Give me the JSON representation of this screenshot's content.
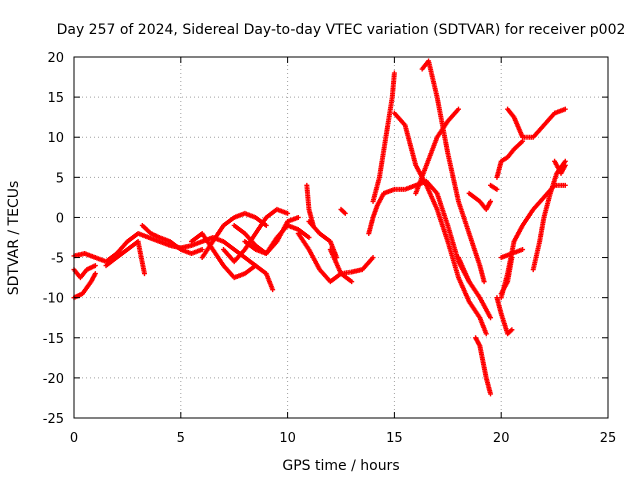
{
  "chart_data": {
    "type": "scatter",
    "title": "Day 257 of 2024, Sidereal Day-to-day VTEC variation (SDTVAR) for receiver p002",
    "xlabel": "GPS time / hours",
    "ylabel": "SDTVAR / TECUs",
    "xlim": [
      0,
      25
    ],
    "ylim": [
      -25,
      20
    ],
    "x_ticks": [
      "0",
      "5",
      "10",
      "15",
      "20",
      "25"
    ],
    "y_ticks": [
      "-25",
      "-20",
      "-15",
      "-10",
      "-5",
      "0",
      "5",
      "10",
      "15",
      "20"
    ],
    "grid": true,
    "marker": "+",
    "color": "#ff0000",
    "series": [
      {
        "tracks": [
          [
            [
              0.0,
              -4.8
            ],
            [
              0.5,
              -4.5
            ],
            [
              1.0,
              -5.0
            ],
            [
              1.5,
              -5.5
            ],
            [
              2.0,
              -4.5
            ],
            [
              2.5,
              -3.0
            ],
            [
              3.0,
              -2.0
            ],
            [
              3.5,
              -2.5
            ],
            [
              4.0,
              -3.0
            ],
            [
              4.5,
              -3.5
            ],
            [
              5.0,
              -3.8
            ],
            [
              5.5,
              -3.5
            ],
            [
              6.0,
              -3.0
            ],
            [
              6.5,
              -2.5
            ],
            [
              7.0,
              -3.0
            ],
            [
              7.5,
              -4.0
            ],
            [
              8.0,
              -5.0
            ],
            [
              8.5,
              -6.0
            ],
            [
              9.0,
              -7.0
            ],
            [
              9.3,
              -9.0
            ]
          ],
          [
            [
              0.0,
              -6.5
            ],
            [
              0.3,
              -7.5
            ],
            [
              0.6,
              -6.5
            ],
            [
              1.0,
              -6.0
            ]
          ],
          [
            [
              0.0,
              -10.0
            ],
            [
              0.4,
              -9.5
            ],
            [
              0.8,
              -8.0
            ],
            [
              1.0,
              -7.0
            ]
          ],
          [
            [
              1.5,
              -6.0
            ],
            [
              2.0,
              -5.0
            ],
            [
              2.5,
              -4.0
            ],
            [
              3.0,
              -3.0
            ],
            [
              3.3,
              -7.0
            ]
          ],
          [
            [
              3.2,
              -1.0
            ],
            [
              3.6,
              -2.0
            ],
            [
              4.0,
              -2.5
            ],
            [
              4.5,
              -3.0
            ],
            [
              5.0,
              -4.0
            ],
            [
              5.5,
              -4.5
            ],
            [
              6.0,
              -4.0
            ]
          ],
          [
            [
              5.5,
              -3.0
            ],
            [
              6.0,
              -2.0
            ],
            [
              6.5,
              -4.0
            ],
            [
              7.0,
              -6.0
            ],
            [
              7.5,
              -7.5
            ],
            [
              8.0,
              -7.0
            ],
            [
              8.5,
              -6.0
            ]
          ],
          [
            [
              6.0,
              -5.0
            ],
            [
              6.5,
              -3.0
            ],
            [
              7.0,
              -1.0
            ],
            [
              7.5,
              0.0
            ],
            [
              8.0,
              0.5
            ],
            [
              8.5,
              0.0
            ],
            [
              9.0,
              -1.0
            ]
          ],
          [
            [
              7.0,
              -4.0
            ],
            [
              7.5,
              -5.5
            ],
            [
              8.0,
              -4.0
            ],
            [
              8.5,
              -2.0
            ],
            [
              9.0,
              0.0
            ],
            [
              9.5,
              1.0
            ],
            [
              10.0,
              0.5
            ]
          ],
          [
            [
              8.0,
              -3.0
            ],
            [
              8.5,
              -4.0
            ],
            [
              9.0,
              -4.5
            ],
            [
              9.5,
              -2.5
            ],
            [
              10.0,
              -1.0
            ],
            [
              10.5,
              -1.5
            ],
            [
              11.0,
              -2.5
            ]
          ],
          [
            [
              7.5,
              -1.0
            ],
            [
              8.0,
              -2.0
            ],
            [
              8.5,
              -3.5
            ],
            [
              9.0,
              -4.5
            ],
            [
              9.5,
              -3.0
            ],
            [
              10.0,
              -0.5
            ],
            [
              10.5,
              0.0
            ]
          ],
          [
            [
              10.5,
              -2.0
            ],
            [
              11.0,
              -4.0
            ],
            [
              11.5,
              -6.5
            ],
            [
              12.0,
              -8.0
            ],
            [
              12.5,
              -7.0
            ],
            [
              13.0,
              -6.8
            ],
            [
              13.5,
              -6.5
            ],
            [
              14.0,
              -5.0
            ]
          ],
          [
            [
              11.0,
              -0.5
            ],
            [
              11.5,
              -2.0
            ],
            [
              12.0,
              -3.0
            ],
            [
              12.3,
              -5.0
            ]
          ],
          [
            [
              10.9,
              4.0
            ],
            [
              11.0,
              1.0
            ],
            [
              11.2,
              -1.0
            ]
          ],
          [
            [
              12.5,
              1.0
            ],
            [
              12.7,
              0.5
            ]
          ],
          [
            [
              12.0,
              -4.0
            ],
            [
              12.5,
              -7.0
            ],
            [
              13.0,
              -8.0
            ]
          ],
          [
            [
              13.8,
              -2.0
            ],
            [
              14.0,
              0.0
            ],
            [
              14.2,
              1.5
            ],
            [
              14.5,
              3.0
            ],
            [
              15.0,
              3.5
            ],
            [
              15.5,
              3.5
            ],
            [
              16.0,
              4.0
            ],
            [
              16.5,
              4.5
            ],
            [
              17.0,
              3.0
            ],
            [
              17.5,
              -1.0
            ],
            [
              18.0,
              -5.5
            ],
            [
              18.5,
              -8.0
            ]
          ],
          [
            [
              14.0,
              2.0
            ],
            [
              14.3,
              5.0
            ],
            [
              14.6,
              10.0
            ],
            [
              14.9,
              15.0
            ],
            [
              15.0,
              18.0
            ]
          ],
          [
            [
              15.0,
              13.0
            ],
            [
              15.5,
              11.5
            ],
            [
              16.0,
              6.5
            ],
            [
              16.5,
              4.0
            ],
            [
              17.0,
              1.0
            ],
            [
              17.5,
              -3.0
            ],
            [
              18.0,
              -7.5
            ],
            [
              18.5,
              -10.5
            ],
            [
              19.0,
              -12.5
            ],
            [
              19.3,
              -14.5
            ]
          ],
          [
            [
              16.0,
              3.0
            ],
            [
              16.5,
              6.5
            ],
            [
              17.0,
              10.0
            ],
            [
              17.5,
              12.0
            ],
            [
              18.0,
              13.5
            ]
          ],
          [
            [
              16.3,
              18.5
            ],
            [
              16.6,
              19.5
            ],
            [
              17.0,
              15.0
            ],
            [
              17.5,
              8.0
            ],
            [
              18.0,
              2.0
            ],
            [
              18.5,
              -2.0
            ],
            [
              19.0,
              -6.0
            ],
            [
              19.2,
              -8.0
            ]
          ],
          [
            [
              18.5,
              3.0
            ],
            [
              19.0,
              2.0
            ],
            [
              19.3,
              1.0
            ],
            [
              19.5,
              2.0
            ]
          ],
          [
            [
              18.0,
              -5.0
            ],
            [
              18.5,
              -8.0
            ],
            [
              19.0,
              -10.0
            ],
            [
              19.5,
              -12.5
            ]
          ],
          [
            [
              18.8,
              -15.0
            ],
            [
              19.0,
              -16.0
            ],
            [
              19.3,
              -20.0
            ],
            [
              19.5,
              -22.0
            ]
          ],
          [
            [
              19.5,
              4.0
            ],
            [
              19.8,
              3.5
            ]
          ],
          [
            [
              19.8,
              5.0
            ],
            [
              20.0,
              7.0
            ],
            [
              20.3,
              7.5
            ],
            [
              20.6,
              8.5
            ],
            [
              21.0,
              9.5
            ]
          ],
          [
            [
              20.3,
              13.5
            ],
            [
              20.6,
              12.5
            ],
            [
              21.0,
              10.0
            ],
            [
              21.5,
              10.0
            ],
            [
              22.0,
              11.5
            ],
            [
              22.5,
              13.0
            ],
            [
              23.0,
              13.5
            ]
          ],
          [
            [
              19.8,
              -10.0
            ],
            [
              20.0,
              -12.0
            ],
            [
              20.3,
              -14.5
            ],
            [
              20.5,
              -14.0
            ]
          ],
          [
            [
              20.0,
              -10.0
            ],
            [
              20.3,
              -7.0
            ],
            [
              20.6,
              -3.0
            ],
            [
              21.0,
              -1.0
            ],
            [
              21.5,
              1.0
            ],
            [
              22.0,
              2.5
            ],
            [
              22.5,
              4.0
            ],
            [
              23.0,
              4.0
            ]
          ],
          [
            [
              20.0,
              -5.0
            ],
            [
              20.5,
              -4.5
            ],
            [
              21.0,
              -4.0
            ]
          ],
          [
            [
              21.5,
              -6.5
            ],
            [
              21.8,
              -3.0
            ],
            [
              22.0,
              0.0
            ],
            [
              22.3,
              3.0
            ],
            [
              22.6,
              5.5
            ],
            [
              23.0,
              7.0
            ]
          ],
          [
            [
              20.0,
              -9.5
            ],
            [
              20.3,
              -8.0
            ],
            [
              20.5,
              -5.0
            ]
          ],
          [
            [
              22.5,
              7.0
            ],
            [
              22.8,
              5.5
            ],
            [
              23.0,
              6.5
            ]
          ]
        ]
      }
    ]
  }
}
